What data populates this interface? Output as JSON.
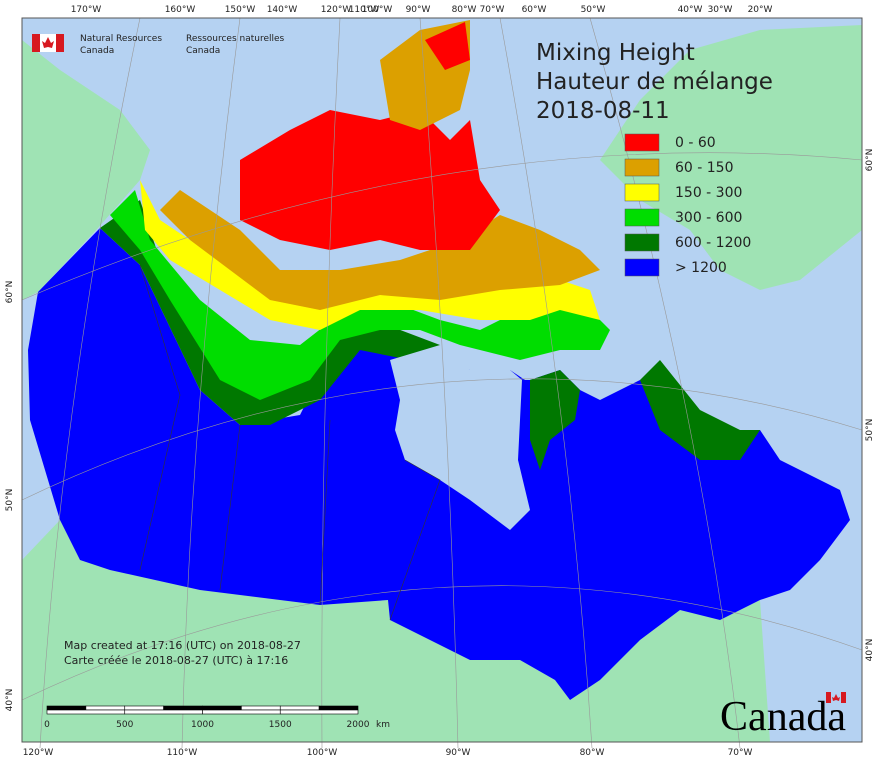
{
  "header": {
    "agency_en": [
      "Natural Resources",
      "Canada"
    ],
    "agency_fr": [
      "Ressources naturelles",
      "Canada"
    ]
  },
  "title": [
    "Mixing Height",
    "Hauteur de mélange",
    "2018-08-11"
  ],
  "legend": [
    {
      "label": "0 - 60",
      "color": "#ff0000"
    },
    {
      "label": "60 - 150",
      "color": "#dca000"
    },
    {
      "label": "150 - 300",
      "color": "#ffff00"
    },
    {
      "label": "300 - 600",
      "color": "#00dd00"
    },
    {
      "label": "600 - 1200",
      "color": "#007800"
    },
    {
      "label": "> 1200",
      "color": "#0000ff"
    }
  ],
  "graticule": {
    "top": [
      "170°W",
      "160°W",
      "150°W",
      "140°W",
      "120°W",
      "110°W",
      "100°W",
      "90°W",
      "80°W",
      "70°W",
      "60°W",
      "50°W",
      "40°W",
      "30°W",
      "20°W"
    ],
    "bottom": [
      "120°W",
      "110°W",
      "100°W",
      "90°W",
      "80°W",
      "70°W"
    ],
    "left": [
      "60°N",
      "50°N",
      "40°N"
    ],
    "right": [
      "60°N",
      "50°N",
      "40°N"
    ]
  },
  "footer": [
    "Map created at 17:16 (UTC) on 2018-08-27",
    "Carte créée le 2018-08-27 (UTC) à 17:16"
  ],
  "scale_bar": {
    "ticks": [
      0,
      500,
      1000,
      1500,
      2000
    ],
    "unit": "km"
  },
  "wordmark": "Canada"
}
